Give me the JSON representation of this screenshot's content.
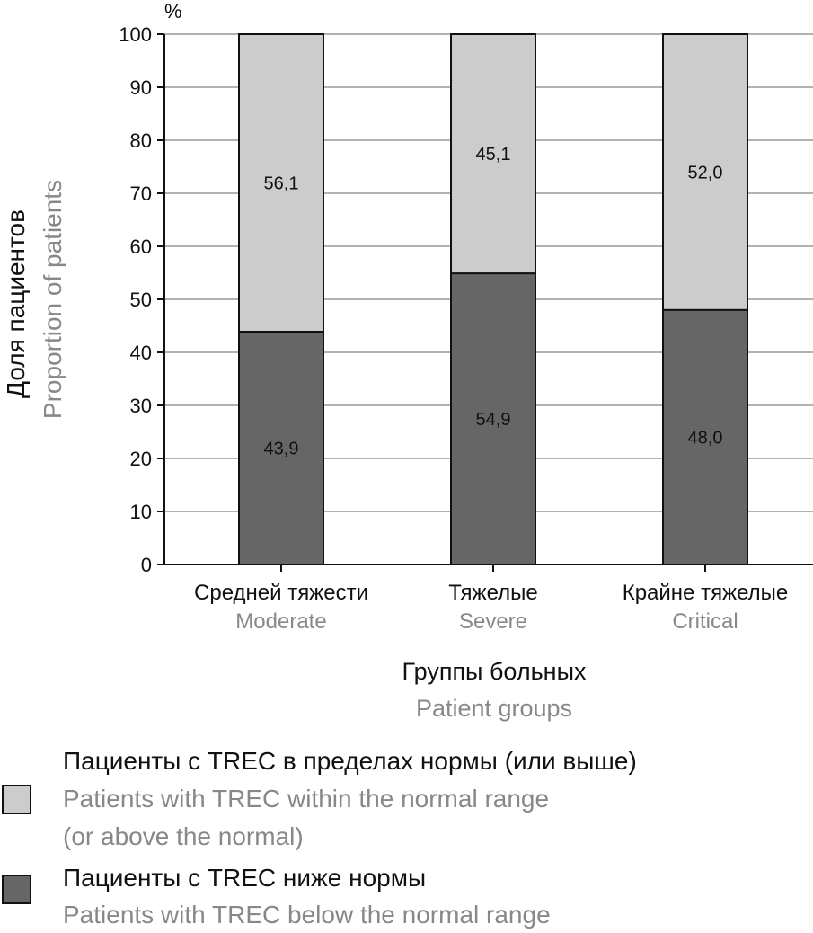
{
  "chart_data": {
    "type": "stacked-bar",
    "unit": "%",
    "ylabel_ru": "Доля пациентов",
    "ylabel_en": "Proportion of patients",
    "xlabel_ru": "Группы больных",
    "xlabel_en": "Patient groups",
    "ylim": [
      0,
      100
    ],
    "yticks": [
      0,
      10,
      20,
      30,
      40,
      50,
      60,
      70,
      80,
      90,
      100
    ],
    "categories": [
      {
        "ru": "Средней тяжести",
        "en": "Moderate"
      },
      {
        "ru": "Тяжелые",
        "en": "Severe"
      },
      {
        "ru": "Крайне тяжелые",
        "en": "Critical"
      }
    ],
    "series": [
      {
        "name": "below",
        "color": "#666666",
        "values": [
          43.9,
          54.9,
          48.0
        ],
        "labels": [
          "43,9",
          "54,9",
          "48,0"
        ]
      },
      {
        "name": "normal",
        "color": "#cccccc",
        "values": [
          56.1,
          45.1,
          52.0
        ],
        "labels": [
          "56,1",
          "45,1",
          "52,0"
        ]
      }
    ]
  },
  "legend": {
    "normal": {
      "ru": "Пациенты с TREC в пределах нормы (или выше)",
      "en_line1": "Patients with TREC  within the normal range",
      "en_line2": "(or above the normal)",
      "color": "#cccccc"
    },
    "below": {
      "ru": "Пациенты с TREC ниже нормы",
      "en": "Patients with TREC below the normal range",
      "color": "#666666"
    }
  }
}
